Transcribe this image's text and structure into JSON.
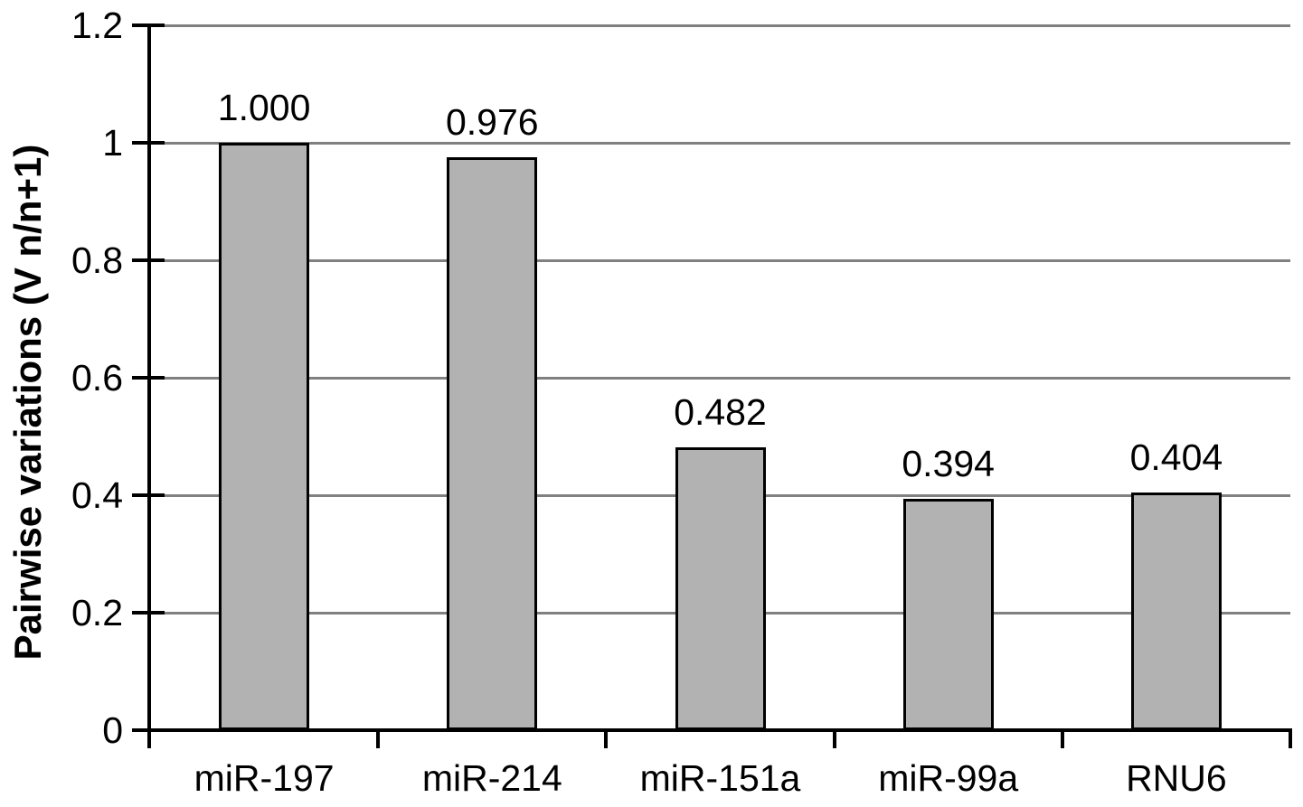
{
  "chart_data": {
    "type": "bar",
    "categories": [
      "miR-197",
      "miR-214",
      "miR-151a",
      "miR-99a",
      "RNU6"
    ],
    "values": [
      1.0,
      0.976,
      0.482,
      0.394,
      0.404
    ],
    "value_labels": [
      "1.000",
      "0.976",
      "0.482",
      "0.394",
      "0.404"
    ],
    "title": "",
    "xlabel": "",
    "ylabel": "Pairwise variations (V n/n+1)",
    "ylim": [
      0,
      1.2
    ],
    "ytick_step": 0.2,
    "ytick_labels": [
      "0",
      "0.2",
      "0.4",
      "0.6",
      "0.8",
      "1",
      "1.2"
    ],
    "grid": "horizontal",
    "legend": "none",
    "colors": {
      "bar_fill": "#b2b2b2",
      "bar_border": "#000000",
      "gridline": "#808080",
      "axis": "#000000",
      "background": "#ffffff",
      "text": "#000000"
    }
  }
}
